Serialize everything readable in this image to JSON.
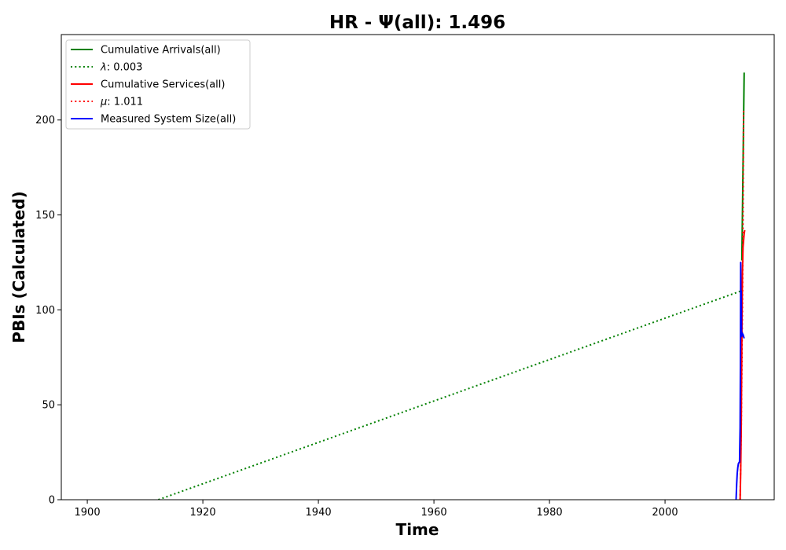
{
  "chart_data": {
    "type": "line",
    "title": "HR -  Ψ(all): 1.496",
    "xlabel": "Time",
    "ylabel": "PBIs (Calculated)",
    "xlim": [
      1895.5,
      2018.9
    ],
    "ylim": [
      0,
      245
    ],
    "xticks": [
      1900,
      1920,
      1940,
      1960,
      1980,
      2000
    ],
    "yticks": [
      0,
      50,
      100,
      150,
      200
    ],
    "legend_position": "upper-left",
    "grid": false,
    "series": [
      {
        "name": "Cumulative Arrivals(all)",
        "legend_label": "Cumulative Arrivals(all)",
        "color": "#008000",
        "style": "solid",
        "points": [
          [
            2013.3,
            126
          ],
          [
            2013.4,
            150
          ],
          [
            2013.5,
            175
          ],
          [
            2013.6,
            200
          ],
          [
            2013.7,
            225
          ]
        ]
      },
      {
        "name": "lambda",
        "legend_label": ": 0.003",
        "legend_symbol": "λ",
        "color": "#008000",
        "style": "dotted",
        "points": [
          [
            1912.3,
            0
          ],
          [
            2013.2,
            110
          ]
        ]
      },
      {
        "name": "Cumulative Services(all)",
        "legend_label": "Cumulative Services(all)",
        "color": "#ff0000",
        "style": "solid",
        "points": [
          [
            2013.0,
            0
          ],
          [
            2013.1,
            15
          ],
          [
            2013.2,
            40
          ],
          [
            2013.3,
            85
          ],
          [
            2013.4,
            120
          ],
          [
            2013.5,
            133
          ],
          [
            2013.7,
            140
          ],
          [
            2013.8,
            142
          ]
        ]
      },
      {
        "name": "mu",
        "legend_label": ": 1.011",
        "legend_symbol": "μ",
        "color": "#ff0000",
        "style": "dotted",
        "points": [
          [
            2013.0,
            0
          ],
          [
            2013.2,
            40
          ],
          [
            2013.4,
            100
          ],
          [
            2013.5,
            150
          ],
          [
            2013.6,
            205
          ]
        ]
      },
      {
        "name": "Measured System Size(all)",
        "legend_label": "Measured System Size(all)",
        "color": "#0000ff",
        "style": "solid",
        "points": [
          [
            2012.3,
            0
          ],
          [
            2012.4,
            8
          ],
          [
            2012.5,
            14
          ],
          [
            2012.6,
            17
          ],
          [
            2012.7,
            19
          ],
          [
            2012.9,
            20
          ],
          [
            2013.0,
            38
          ],
          [
            2013.05,
            70
          ],
          [
            2013.1,
            125
          ],
          [
            2013.15,
            90
          ],
          [
            2013.2,
            110
          ],
          [
            2013.25,
            86
          ],
          [
            2013.3,
            88
          ],
          [
            2013.5,
            87
          ],
          [
            2013.7,
            85
          ]
        ]
      }
    ]
  }
}
